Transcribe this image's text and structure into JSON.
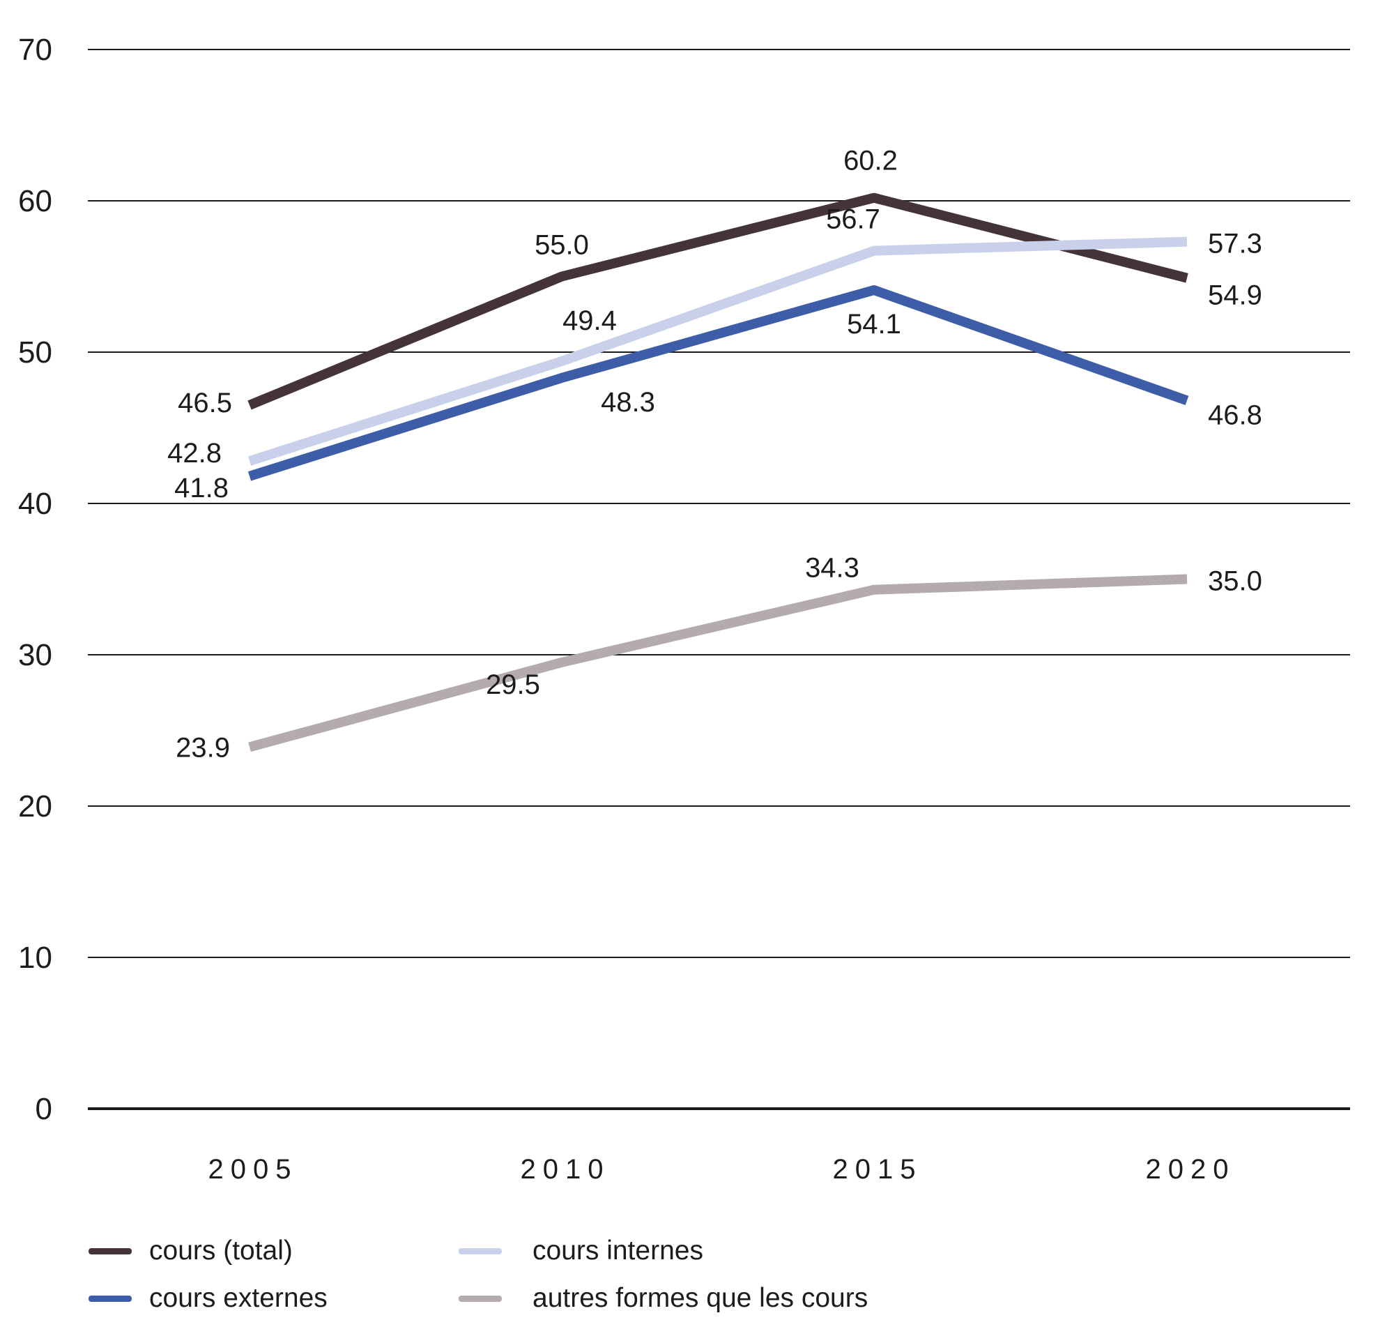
{
  "chart_data": {
    "type": "line",
    "x": [
      "2005",
      "2010",
      "2015",
      "2020"
    ],
    "series": [
      {
        "name": "cours (total)",
        "color": "#45333a",
        "values": [
          46.5,
          55.0,
          60.2,
          54.9
        ],
        "label_texts": [
          "46.5",
          "55.0",
          "60.2",
          "54.9"
        ],
        "label_pos": [
          {
            "anchor": "end",
            "dx": -25,
            "dy": 10
          },
          {
            "anchor": "middle",
            "dx": 0,
            "dy": -32
          },
          {
            "anchor": "middle",
            "dx": -5,
            "dy": -40
          },
          {
            "anchor": "start",
            "dx": 30,
            "dy": 38
          }
        ]
      },
      {
        "name": "cours internes",
        "color": "#c9d0ea",
        "values": [
          42.8,
          49.4,
          56.7,
          57.3
        ],
        "label_texts": [
          "42.8",
          "49.4",
          "56.7",
          "57.3"
        ],
        "label_pos": [
          {
            "anchor": "end",
            "dx": -40,
            "dy": 2
          },
          {
            "anchor": "middle",
            "dx": 40,
            "dy": -45
          },
          {
            "anchor": "middle",
            "dx": -30,
            "dy": -32
          },
          {
            "anchor": "start",
            "dx": 30,
            "dy": 16
          }
        ]
      },
      {
        "name": "cours externes",
        "color": "#3d5da9",
        "values": [
          41.8,
          48.3,
          54.1,
          46.8
        ],
        "label_texts": [
          "41.8",
          "48.3",
          "54.1",
          "46.8"
        ],
        "label_pos": [
          {
            "anchor": "end",
            "dx": -30,
            "dy": 30
          },
          {
            "anchor": "middle",
            "dx": 95,
            "dy": 48
          },
          {
            "anchor": "middle",
            "dx": 0,
            "dy": 62
          },
          {
            "anchor": "start",
            "dx": 30,
            "dy": 34
          }
        ]
      },
      {
        "name": "autres formes que les cours",
        "color": "#b4abad",
        "values": [
          23.9,
          29.5,
          34.3,
          35.0
        ],
        "label_texts": [
          "23.9",
          "29.5",
          "34.3",
          "35.0"
        ],
        "label_pos": [
          {
            "anchor": "end",
            "dx": -28,
            "dy": 14
          },
          {
            "anchor": "middle",
            "dx": -70,
            "dy": 45
          },
          {
            "anchor": "middle",
            "dx": -60,
            "dy": -18
          },
          {
            "anchor": "start",
            "dx": 30,
            "dy": 16
          }
        ]
      }
    ],
    "ylim": [
      0,
      70
    ],
    "y_ticks": [
      "0",
      "10",
      "20",
      "30",
      "40",
      "50",
      "60",
      "70"
    ],
    "x_ticks": [
      "2005",
      "2010",
      "2015",
      "2020"
    ],
    "grid": true,
    "legend_position": "bottom"
  },
  "legend": {
    "items": [
      {
        "label": "cours (total)",
        "color": "#45333a"
      },
      {
        "label": "cours internes",
        "color": "#c9d0ea"
      },
      {
        "label": "cours externes",
        "color": "#3d5da9"
      },
      {
        "label": "autres formes que les cours",
        "color": "#b4abad"
      }
    ]
  },
  "colors": {
    "grid": "#1a1a1a",
    "text": "#1c1c1c",
    "background": "#ffffff"
  }
}
